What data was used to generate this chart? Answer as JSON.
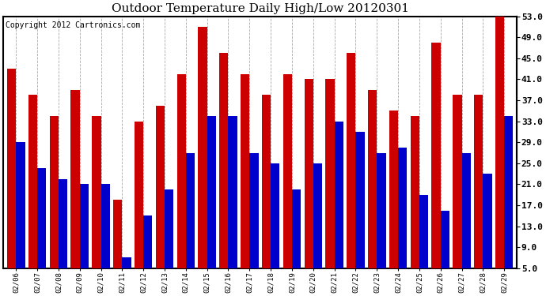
{
  "title": "Outdoor Temperature Daily High/Low 20120301",
  "copyright": "Copyright 2012 Cartronics.com",
  "dates": [
    "02/06",
    "02/07",
    "02/08",
    "02/09",
    "02/10",
    "02/11",
    "02/12",
    "02/13",
    "02/14",
    "02/15",
    "02/16",
    "02/17",
    "02/18",
    "02/19",
    "02/20",
    "02/21",
    "02/22",
    "02/23",
    "02/24",
    "02/25",
    "02/26",
    "02/27",
    "02/28",
    "02/29"
  ],
  "highs": [
    43,
    38,
    34,
    39,
    34,
    18,
    33,
    36,
    42,
    51,
    46,
    42,
    38,
    42,
    41,
    41,
    46,
    39,
    35,
    34,
    48,
    38,
    38,
    53
  ],
  "lows": [
    29,
    24,
    22,
    21,
    21,
    7,
    15,
    20,
    27,
    34,
    34,
    27,
    25,
    20,
    25,
    33,
    31,
    27,
    28,
    19,
    16,
    27,
    23,
    34
  ],
  "high_color": "#cc0000",
  "low_color": "#0000cc",
  "background_color": "#ffffff",
  "grid_color": "#aaaaaa",
  "ylim_low": 5.0,
  "ylim_high": 53.0,
  "yticks": [
    5.0,
    9.0,
    13.0,
    17.0,
    21.0,
    25.0,
    29.0,
    33.0,
    37.0,
    41.0,
    45.0,
    49.0,
    53.0
  ],
  "title_fontsize": 11,
  "copyright_fontsize": 7,
  "bar_width": 0.42,
  "fig_width": 6.9,
  "fig_height": 3.75,
  "dpi": 100
}
